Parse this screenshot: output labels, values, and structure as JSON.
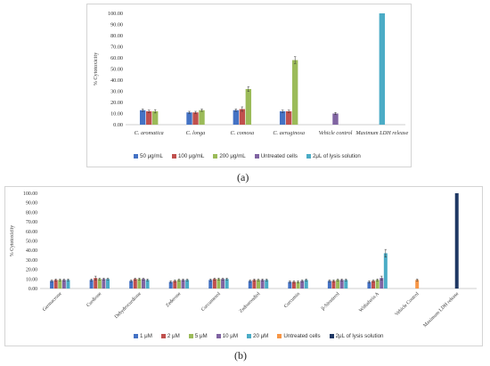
{
  "chart_data": [
    {
      "type": "bar",
      "panel_label": "(a)",
      "ylabel": "% Cytotoxicity",
      "ylim": [
        0,
        100
      ],
      "yticks": [
        "0.00",
        "10.00",
        "20.00",
        "30.00",
        "40.00",
        "50.00",
        "60.00",
        "70.00",
        "80.00",
        "90.00",
        "100.00"
      ],
      "grid": false,
      "legend_position": "bottom",
      "categories": [
        "C. aromatica",
        "C. longa",
        "C. comosa",
        "C. aeruginosa",
        "Vehicle control",
        "Maximum LDH release"
      ],
      "series": [
        {
          "name": "50 μg/mL",
          "color": "#4472c4",
          "values": [
            13,
            11,
            13,
            12,
            null,
            null
          ],
          "errors": [
            1,
            1,
            1,
            1,
            null,
            null
          ]
        },
        {
          "name": "100 μg/mL",
          "color": "#c0504d",
          "values": [
            12,
            11,
            14,
            12,
            null,
            null
          ],
          "errors": [
            1,
            1,
            2,
            1,
            null,
            null
          ]
        },
        {
          "name": "200 μg/mL",
          "color": "#9bbb59",
          "values": [
            12,
            13,
            32,
            58,
            null,
            null
          ],
          "errors": [
            1.5,
            1,
            2,
            3,
            null,
            null
          ]
        },
        {
          "name": "Untreated cells",
          "color": "#8064a2",
          "values": [
            null,
            null,
            null,
            null,
            10,
            null
          ],
          "errors": [
            null,
            null,
            null,
            null,
            1,
            null
          ]
        },
        {
          "name": "2μL of lysis solution",
          "color": "#4bacc6",
          "values": [
            null,
            null,
            null,
            null,
            null,
            100
          ],
          "errors": [
            null,
            null,
            null,
            null,
            null,
            0
          ]
        }
      ]
    },
    {
      "type": "bar",
      "panel_label": "(b)",
      "ylabel": "% Cytotoxicity",
      "ylim": [
        0,
        100
      ],
      "yticks": [
        "0.00",
        "10.00",
        "20.00",
        "30.00",
        "40.00",
        "50.00",
        "60.00",
        "70.00",
        "80.00",
        "90.00",
        "100.00"
      ],
      "grid": false,
      "legend_position": "bottom",
      "categories": [
        "Germacrone",
        "Curdione",
        "Dehydrocurdione",
        "Zederone",
        "Curcumenol",
        "Zedoarondiol",
        "Curcumin",
        "β-Sitosterol",
        "Withaferin A",
        "Vehicle Control",
        "Maximum LDH release"
      ],
      "series": [
        {
          "name": "1 μM",
          "color": "#4472c4",
          "values": [
            8,
            9,
            8,
            7,
            9,
            8,
            7,
            8,
            7,
            null,
            null
          ],
          "errors": [
            1,
            1,
            1,
            1,
            1,
            1,
            1,
            1,
            1,
            null,
            null
          ]
        },
        {
          "name": "2 μM",
          "color": "#c0504d",
          "values": [
            9,
            11,
            10,
            8,
            10,
            9,
            7,
            8,
            8,
            null,
            null
          ],
          "errors": [
            1,
            2,
            1,
            1,
            1,
            1,
            1,
            1,
            1,
            null,
            null
          ]
        },
        {
          "name": "5 μM",
          "color": "#9bbb59",
          "values": [
            9,
            10,
            10,
            9,
            10,
            9,
            7,
            9,
            9,
            null,
            null
          ],
          "errors": [
            1,
            1,
            1,
            1,
            1,
            1,
            1,
            1,
            1,
            null,
            null
          ]
        },
        {
          "name": "10 μM",
          "color": "#8064a2",
          "values": [
            9,
            10,
            10,
            9,
            10,
            9,
            8,
            9,
            11,
            null,
            null
          ],
          "errors": [
            1,
            1,
            1,
            1,
            1,
            1,
            1,
            1,
            2,
            null,
            null
          ]
        },
        {
          "name": "20 μM",
          "color": "#4bacc6",
          "values": [
            9,
            10,
            9,
            9,
            10,
            9,
            9,
            9,
            37,
            null,
            null
          ],
          "errors": [
            1,
            1,
            1,
            1,
            1,
            1,
            1,
            1,
            4,
            null,
            null
          ]
        },
        {
          "name": "Untreated cells",
          "color": "#f79646",
          "values": [
            null,
            null,
            null,
            null,
            null,
            null,
            null,
            null,
            null,
            9,
            null
          ],
          "errors": [
            null,
            null,
            null,
            null,
            null,
            null,
            null,
            null,
            null,
            1,
            null
          ]
        },
        {
          "name": "2μL of lysis solution",
          "color": "#1f3864",
          "values": [
            null,
            null,
            null,
            null,
            null,
            null,
            null,
            null,
            null,
            null,
            100
          ],
          "errors": [
            null,
            null,
            null,
            null,
            null,
            null,
            null,
            null,
            null,
            null,
            0
          ]
        }
      ]
    }
  ]
}
